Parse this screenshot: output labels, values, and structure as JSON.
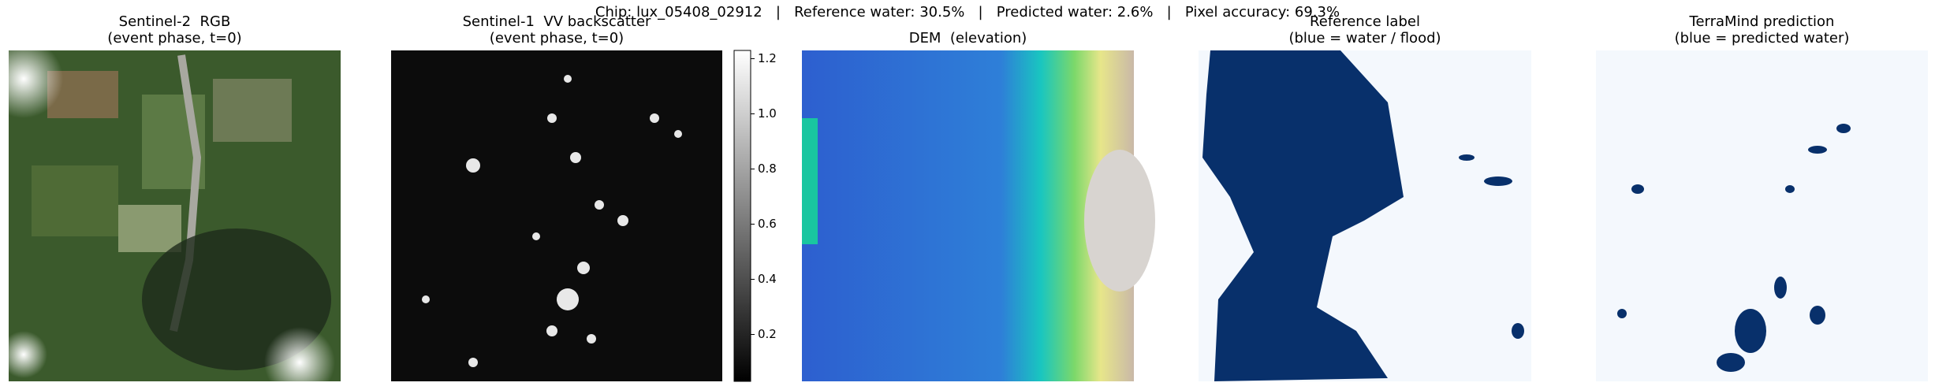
{
  "suptitle": "Chip: lux_05408_02912   |   Reference water: 30.5%   |   Predicted water: 2.6%   |   Pixel accuracy: 69.3%",
  "panels": [
    {
      "title": "Sentinel-2  RGB",
      "subtitle": "(event phase, t=0)"
    },
    {
      "title": "Sentinel-1  VV backscatter",
      "subtitle": "(event phase, t=0)"
    },
    {
      "title": "DEM  (elevation)"
    },
    {
      "title": "Reference label",
      "subtitle": "(blue = water / flood)"
    },
    {
      "title": "TerraMind prediction",
      "subtitle": "(blue = predicted water)"
    }
  ],
  "colorbar": {
    "lim": [
      0.03,
      1.23
    ],
    "ticks": [
      0.2,
      0.4,
      0.6,
      0.8,
      {
        "value": 1,
        "label": "1.0"
      },
      1.2
    ]
  }
}
